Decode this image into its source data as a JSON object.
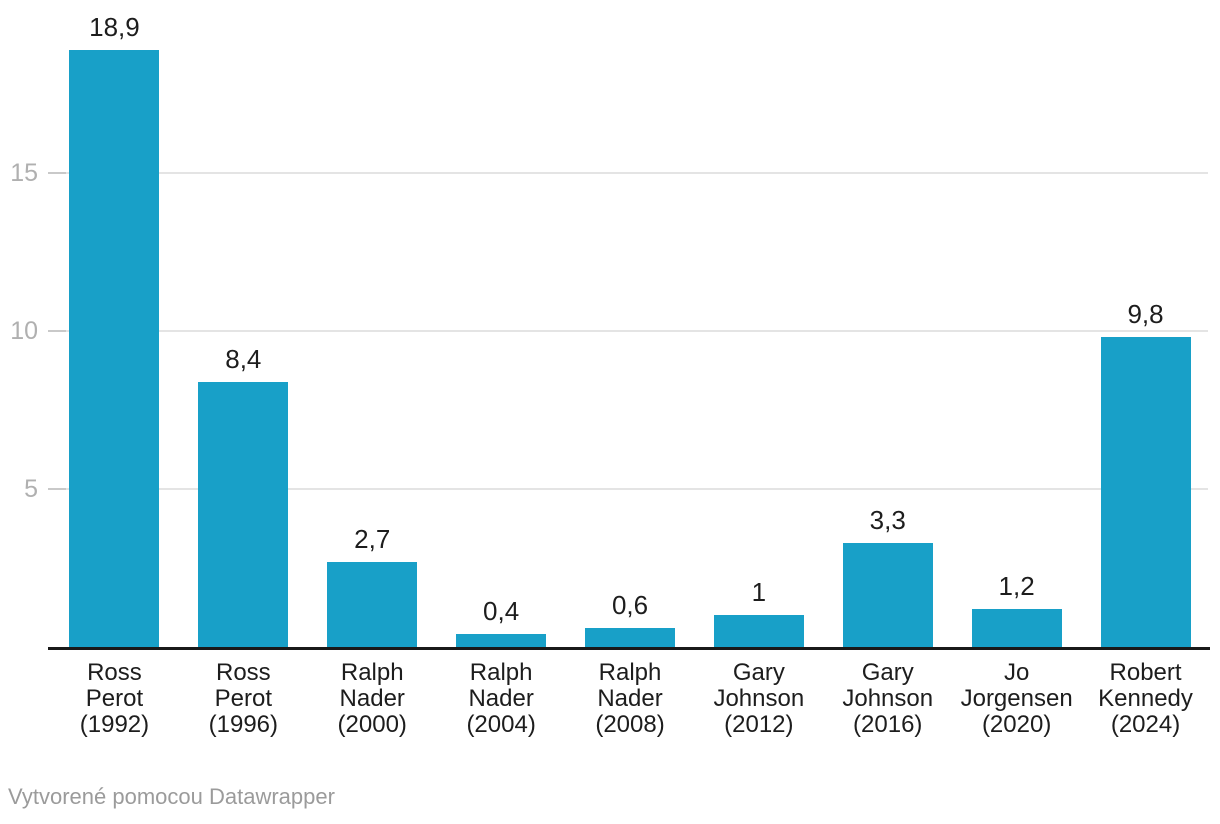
{
  "chart_data": {
    "type": "bar",
    "title": "",
    "xlabel": "",
    "ylabel": "",
    "categories": [
      "Ross Perot (1992)",
      "Ross Perot (1996)",
      "Ralph Nader (2000)",
      "Ralph Nader (2004)",
      "Ralph Nader (2008)",
      "Gary Johnson (2012)",
      "Gary Johnson (2016)",
      "Jo Jorgensen (2020)",
      "Robert Kennedy (2024)"
    ],
    "category_lines": [
      [
        "Ross",
        "Perot",
        "(1992)"
      ],
      [
        "Ross",
        "Perot",
        "(1996)"
      ],
      [
        "Ralph",
        "Nader",
        "(2000)"
      ],
      [
        "Ralph",
        "Nader",
        "(2004)"
      ],
      [
        "Ralph",
        "Nader",
        "(2008)"
      ],
      [
        "Gary",
        "Johnson",
        "(2012)"
      ],
      [
        "Gary",
        "Johnson",
        "(2016)"
      ],
      [
        "Jo",
        "Jorgensen",
        "(2020)"
      ],
      [
        "Robert",
        "Kennedy",
        "(2024)"
      ]
    ],
    "values": [
      18.9,
      8.4,
      2.7,
      0.4,
      0.6,
      1,
      3.3,
      1.2,
      9.8
    ],
    "value_labels": [
      "18,9",
      "8,4",
      "2,7",
      "0,4",
      "0,6",
      "1",
      "3,3",
      "1,2",
      "9,8"
    ],
    "yticks": [
      5,
      10,
      15
    ],
    "ytick_labels": [
      "5",
      "10",
      "15"
    ],
    "ylim": [
      0,
      20
    ],
    "grid": "horizontal",
    "legend": "none",
    "bar_color": "#18a0c8"
  },
  "colors": {
    "background": "#ffffff",
    "bar": "#18a0c8",
    "gridline": "#e4e4e4",
    "tick": "#c9c9c9",
    "axis_line": "#191919",
    "value_label": "#1d1d1d",
    "category_label": "#1d1d1d",
    "ytick_label": "#b0b0b0",
    "footer_text": "#9b9b9b"
  },
  "footer": {
    "prefix": "Vytvorené pomocou",
    "link_label": "Datawrapper"
  }
}
